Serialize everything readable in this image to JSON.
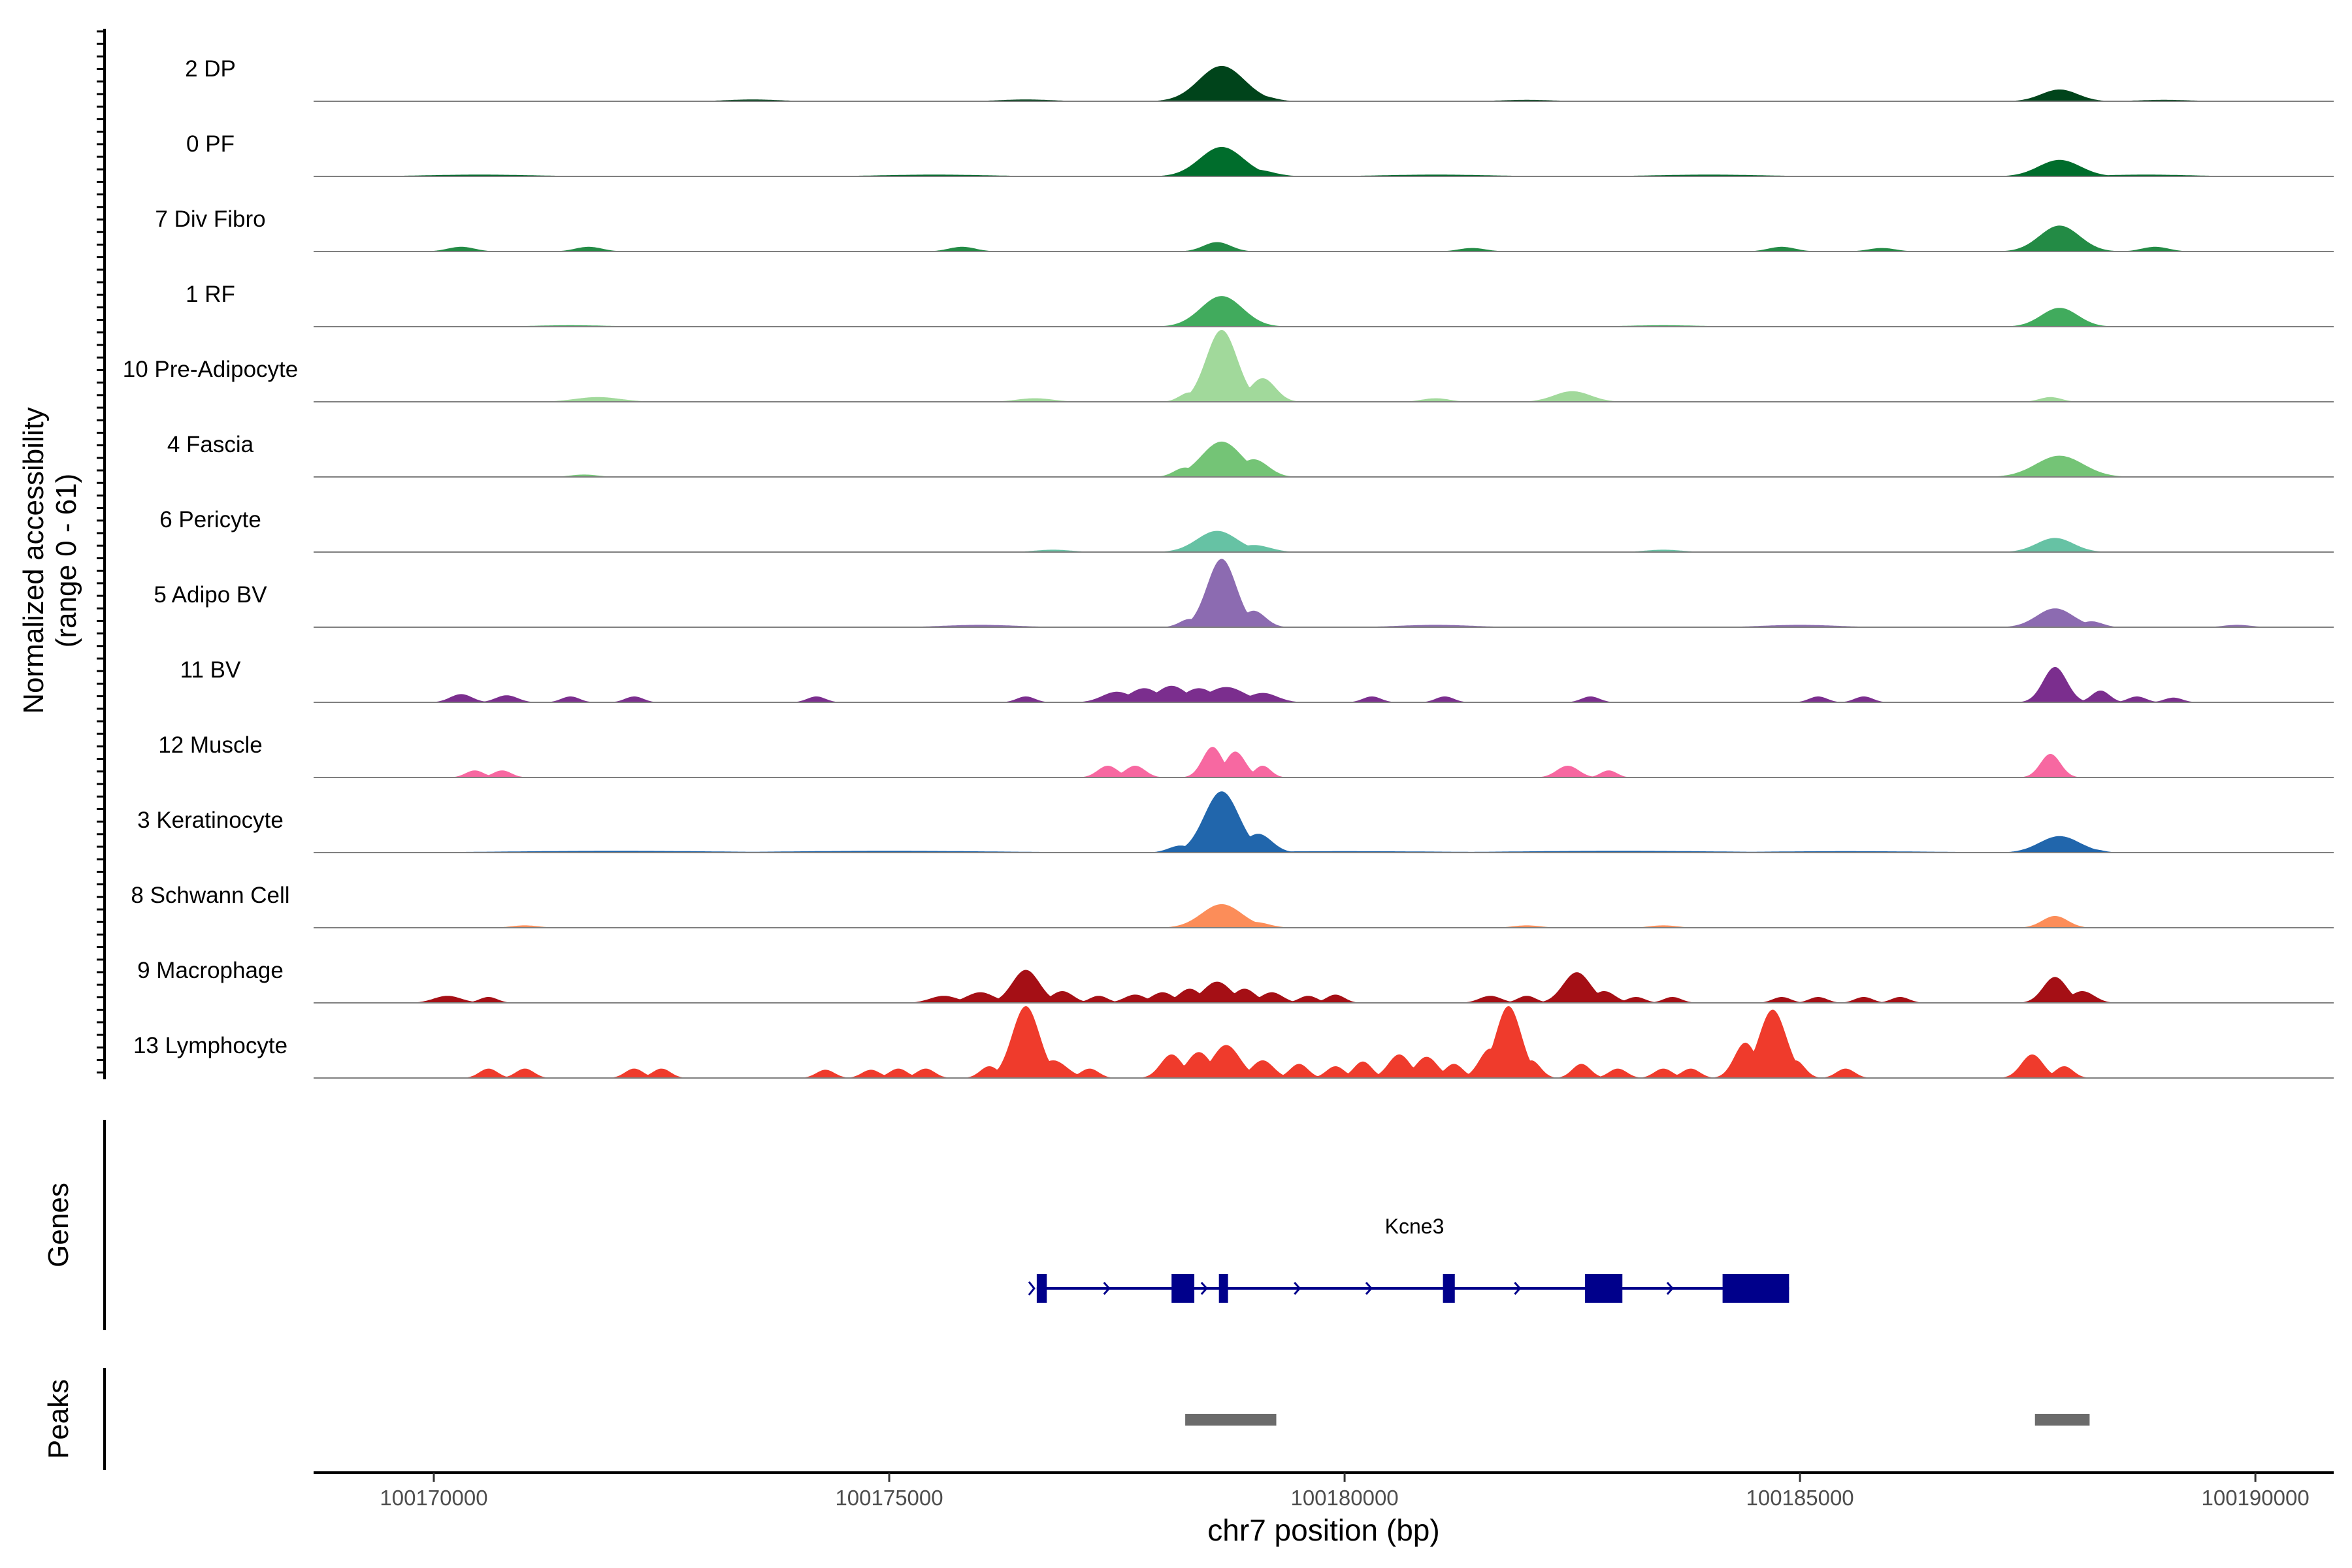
{
  "chart_data": {
    "type": "area",
    "title": "",
    "xlabel": "chr7 position (bp)",
    "ylabel_line1": "Normalized accessibility",
    "ylabel_line2": "(range 0 - 61)",
    "xlim": [
      100168680,
      100190860
    ],
    "ylim": [
      0,
      61
    ],
    "x_ticks": [
      100170000,
      100175000,
      100180000,
      100185000,
      100190000
    ],
    "x_tick_labels": [
      "100170000",
      "100175000",
      "100180000",
      "100185000",
      "100190000"
    ],
    "series": [
      {
        "name": "2 DP",
        "color": "#00441B",
        "peaks": [
          [
            100178650,
            250,
            30
          ],
          [
            100179000,
            180,
            6
          ],
          [
            100187850,
            200,
            10
          ],
          [
            100173500,
            300,
            1.5
          ],
          [
            100176500,
            300,
            1.5
          ],
          [
            100182000,
            300,
            1.2
          ],
          [
            100189000,
            300,
            1.2
          ]
        ]
      },
      {
        "name": "0 PF",
        "color": "#006D2C",
        "peaks": [
          [
            100178650,
            240,
            25
          ],
          [
            100179000,
            200,
            6
          ],
          [
            100187850,
            230,
            14
          ],
          [
            100170500,
            600,
            1.5
          ],
          [
            100175500,
            600,
            1.5
          ],
          [
            100181000,
            600,
            1.5
          ],
          [
            100184000,
            600,
            1.5
          ],
          [
            100188800,
            500,
            1.5
          ]
        ]
      },
      {
        "name": "7 Div Fibro",
        "color": "#238B45",
        "peaks": [
          [
            100178600,
            150,
            8
          ],
          [
            100187850,
            220,
            22
          ],
          [
            100170300,
            150,
            4
          ],
          [
            100171700,
            150,
            4
          ],
          [
            100175800,
            150,
            4
          ],
          [
            100181400,
            150,
            3
          ],
          [
            100184800,
            150,
            4
          ],
          [
            100185900,
            150,
            3
          ],
          [
            100188900,
            150,
            4
          ]
        ]
      },
      {
        "name": "1 RF",
        "color": "#41AB5D",
        "peaks": [
          [
            100178650,
            230,
            26
          ],
          [
            100187850,
            200,
            16
          ],
          [
            100179000,
            150,
            3
          ],
          [
            100171500,
            400,
            1.2
          ],
          [
            100183500,
            400,
            1.2
          ]
        ]
      },
      {
        "name": "10 Pre-Adipocyte",
        "color": "#A1D99B",
        "peaks": [
          [
            100178650,
            170,
            61
          ],
          [
            100179100,
            140,
            20
          ],
          [
            100178300,
            110,
            8
          ],
          [
            100171800,
            250,
            4
          ],
          [
            100176600,
            200,
            3
          ],
          [
            100182500,
            200,
            9
          ],
          [
            100187750,
            120,
            4
          ],
          [
            100181000,
            150,
            3
          ]
        ]
      },
      {
        "name": "4 Fascia",
        "color": "#74C476",
        "peaks": [
          [
            100178650,
            220,
            30
          ],
          [
            100179000,
            160,
            15
          ],
          [
            100178250,
            120,
            8
          ],
          [
            100187850,
            260,
            18
          ],
          [
            100171650,
            150,
            2
          ]
        ]
      },
      {
        "name": "6 Pericyte",
        "color": "#66C2A4",
        "peaks": [
          [
            100178600,
            220,
            18
          ],
          [
            100179000,
            180,
            6
          ],
          [
            100187800,
            200,
            12
          ],
          [
            100176800,
            200,
            2
          ],
          [
            100183500,
            200,
            2
          ]
        ]
      },
      {
        "name": "5 Adipo BV",
        "color": "#8C6BB1",
        "peaks": [
          [
            100178650,
            160,
            58
          ],
          [
            100179000,
            130,
            14
          ],
          [
            100178300,
            110,
            7
          ],
          [
            100187800,
            200,
            16
          ],
          [
            100188200,
            120,
            5
          ],
          [
            100189800,
            150,
            2
          ],
          [
            100176000,
            400,
            2
          ],
          [
            100181000,
            400,
            2
          ],
          [
            100185000,
            400,
            2
          ]
        ]
      },
      {
        "name": "11 BV",
        "color": "#7B2E8E",
        "peaks": [
          [
            100170300,
            120,
            7
          ],
          [
            100170800,
            120,
            6
          ],
          [
            100171500,
            100,
            5
          ],
          [
            100172200,
            100,
            5
          ],
          [
            100174200,
            100,
            5
          ],
          [
            100176500,
            100,
            5
          ],
          [
            100177500,
            160,
            9
          ],
          [
            100177800,
            160,
            12
          ],
          [
            100178100,
            160,
            14
          ],
          [
            100178400,
            160,
            12
          ],
          [
            100178700,
            200,
            13
          ],
          [
            100179100,
            160,
            8
          ],
          [
            100180300,
            100,
            5
          ],
          [
            100181100,
            100,
            5
          ],
          [
            100182700,
            100,
            5
          ],
          [
            100185200,
            100,
            5
          ],
          [
            100185700,
            100,
            5
          ],
          [
            100187800,
            130,
            30
          ],
          [
            100188300,
            100,
            10
          ],
          [
            100188700,
            100,
            5
          ],
          [
            100189100,
            100,
            4
          ]
        ]
      },
      {
        "name": "12 Muscle",
        "color": "#F768A1",
        "peaks": [
          [
            100170450,
            100,
            6
          ],
          [
            100170750,
            100,
            6
          ],
          [
            100177400,
            110,
            10
          ],
          [
            100177700,
            110,
            10
          ],
          [
            100178550,
            110,
            26
          ],
          [
            100178800,
            110,
            22
          ],
          [
            100179100,
            90,
            10
          ],
          [
            100182450,
            120,
            10
          ],
          [
            100182900,
            90,
            6
          ],
          [
            100187750,
            110,
            20
          ]
        ]
      },
      {
        "name": "3 Keratinocyte",
        "color": "#2166AC",
        "peaks": [
          [
            100178650,
            190,
            52
          ],
          [
            100179050,
            150,
            16
          ],
          [
            100178200,
            130,
            6
          ],
          [
            100187850,
            220,
            14
          ],
          [
            100188200,
            120,
            3
          ],
          [
            100172000,
            1200,
            1.5
          ],
          [
            100175000,
            1200,
            1.5
          ],
          [
            100180000,
            1200,
            1.2
          ],
          [
            100183000,
            1200,
            1.5
          ],
          [
            100185500,
            1000,
            1.2
          ]
        ]
      },
      {
        "name": "8 Schwann Cell",
        "color": "#FC8D59",
        "peaks": [
          [
            100178650,
            220,
            20
          ],
          [
            100179000,
            160,
            5
          ],
          [
            100187800,
            140,
            10
          ],
          [
            100171000,
            150,
            2
          ],
          [
            100182000,
            150,
            2
          ],
          [
            100183500,
            150,
            2
          ]
        ]
      },
      {
        "name": "9 Macrophage",
        "color": "#A50F15",
        "peaks": [
          [
            100170150,
            150,
            6
          ],
          [
            100170600,
            100,
            5
          ],
          [
            100175600,
            150,
            6
          ],
          [
            100176000,
            150,
            9
          ],
          [
            100176500,
            150,
            28
          ],
          [
            100176900,
            120,
            10
          ],
          [
            100177300,
            100,
            6
          ],
          [
            100177700,
            120,
            7
          ],
          [
            100178000,
            120,
            9
          ],
          [
            100178300,
            120,
            12
          ],
          [
            100178600,
            150,
            18
          ],
          [
            100178900,
            120,
            12
          ],
          [
            100179200,
            120,
            9
          ],
          [
            100179600,
            100,
            6
          ],
          [
            100179900,
            100,
            7
          ],
          [
            100181600,
            120,
            6
          ],
          [
            100182000,
            100,
            6
          ],
          [
            100182550,
            150,
            26
          ],
          [
            100182850,
            120,
            10
          ],
          [
            100183200,
            100,
            5
          ],
          [
            100183600,
            100,
            5
          ],
          [
            100184800,
            100,
            5
          ],
          [
            100185200,
            100,
            5
          ],
          [
            100185700,
            100,
            5
          ],
          [
            100186100,
            100,
            5
          ],
          [
            100187800,
            130,
            22
          ],
          [
            100188100,
            130,
            10
          ]
        ]
      },
      {
        "name": "13 Lymphocyte",
        "color": "#EF3B2C",
        "peaks": [
          [
            100170600,
            100,
            8
          ],
          [
            100171000,
            100,
            8
          ],
          [
            100172200,
            100,
            8
          ],
          [
            100172500,
            100,
            8
          ],
          [
            100174300,
            100,
            7
          ],
          [
            100174800,
            100,
            7
          ],
          [
            100175100,
            100,
            8
          ],
          [
            100175400,
            100,
            8
          ],
          [
            100176100,
            100,
            10
          ],
          [
            100176500,
            150,
            61
          ],
          [
            100176800,
            150,
            15
          ],
          [
            100177200,
            100,
            8
          ],
          [
            100178100,
            120,
            20
          ],
          [
            100178400,
            130,
            22
          ],
          [
            100178700,
            150,
            28
          ],
          [
            100179100,
            120,
            15
          ],
          [
            100179500,
            100,
            12
          ],
          [
            100179900,
            100,
            10
          ],
          [
            100180200,
            100,
            14
          ],
          [
            100180600,
            120,
            20
          ],
          [
            100180900,
            120,
            18
          ],
          [
            100181200,
            100,
            12
          ],
          [
            100181600,
            120,
            25
          ],
          [
            100181800,
            140,
            61
          ],
          [
            100182050,
            100,
            15
          ],
          [
            100182600,
            100,
            12
          ],
          [
            100183000,
            100,
            8
          ],
          [
            100183500,
            100,
            8
          ],
          [
            100183800,
            100,
            8
          ],
          [
            100184400,
            120,
            30
          ],
          [
            100184700,
            150,
            58
          ],
          [
            100184950,
            100,
            15
          ],
          [
            100185500,
            100,
            8
          ],
          [
            100187550,
            120,
            20
          ],
          [
            100187900,
            100,
            10
          ]
        ]
      }
    ],
    "gene_track": {
      "ylabel": "Genes",
      "gene_name": "Kcne3",
      "strand": "+",
      "start": 100176620,
      "end": 100184880,
      "exons": [
        [
          100176620,
          100176730
        ],
        [
          100178100,
          100178350
        ],
        [
          100178620,
          100178720
        ],
        [
          100181080,
          100181210
        ],
        [
          100182640,
          100183050
        ],
        [
          100184150,
          100184880
        ]
      ]
    },
    "peak_track": {
      "ylabel": "Peaks",
      "peaks": [
        [
          100178250,
          100179250
        ],
        [
          100187580,
          100188180
        ]
      ]
    }
  }
}
